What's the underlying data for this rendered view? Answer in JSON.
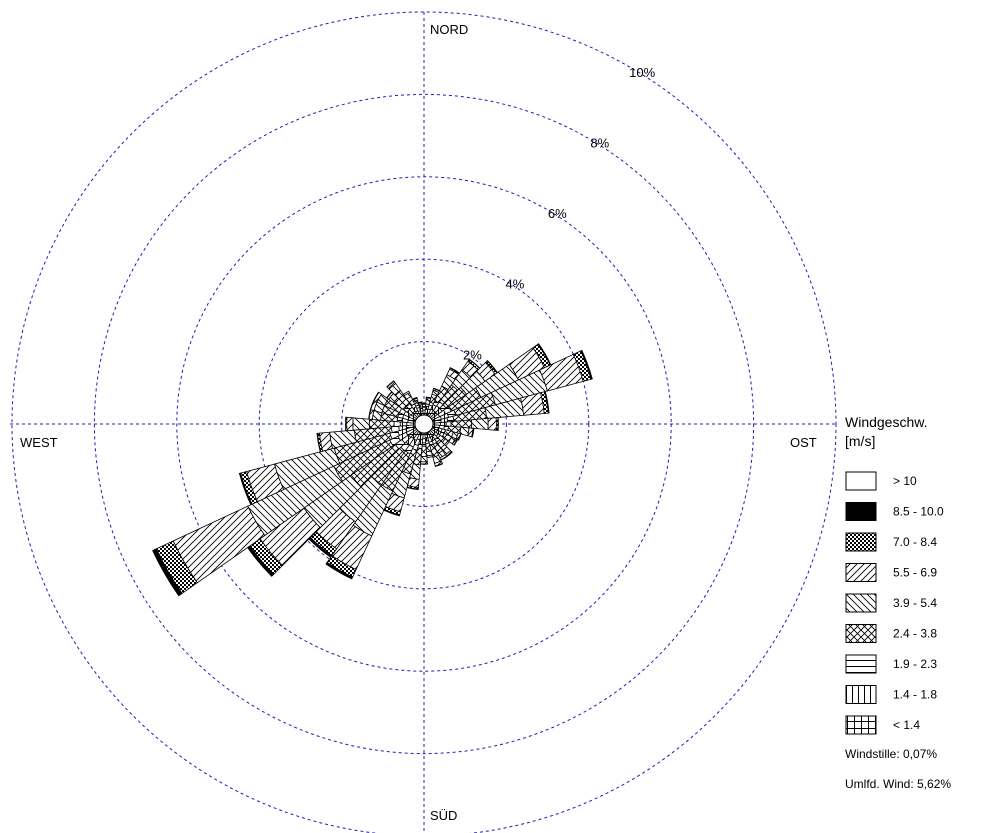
{
  "chart_data": {
    "type": "wind-rose",
    "compass_labels": {
      "north": "NORD",
      "east": "OST",
      "south": "SÜD",
      "west": "WEST"
    },
    "radial_unit": "%",
    "rings": [
      2,
      4,
      6,
      8,
      10
    ],
    "ring_labels": [
      "2%",
      "4%",
      "6%",
      "8%",
      "10%"
    ],
    "rmax": 10,
    "sector_width_deg": 10,
    "speed_classes": [
      {
        "label": "< 1.4",
        "pattern": "grid"
      },
      {
        "label": "1.4 - 1.8",
        "pattern": "vertical"
      },
      {
        "label": "1.9 - 2.3",
        "pattern": "horizontal"
      },
      {
        "label": "2.4 - 3.8",
        "pattern": "crosshatch"
      },
      {
        "label": "3.9 - 5.4",
        "pattern": "backslash"
      },
      {
        "label": "5.5 - 6.9",
        "pattern": "slash"
      },
      {
        "label": "7.0 - 8.4",
        "pattern": "checker"
      },
      {
        "label": "8.5 - 10.0",
        "pattern": "solid"
      },
      {
        "label": "> 10",
        "pattern": "empty"
      }
    ],
    "sectors": [
      {
        "dir": 0,
        "values": [
          0.12,
          0.06,
          0.03,
          0.05,
          0.02,
          0.01,
          0,
          0,
          0
        ]
      },
      {
        "dir": 10,
        "values": [
          0.14,
          0.08,
          0.05,
          0.1,
          0.05,
          0.02,
          0,
          0,
          0
        ]
      },
      {
        "dir": 20,
        "values": [
          0.16,
          0.1,
          0.07,
          0.2,
          0.1,
          0.04,
          0.01,
          0,
          0
        ]
      },
      {
        "dir": 30,
        "values": [
          0.18,
          0.12,
          0.1,
          0.4,
          0.3,
          0.15,
          0.03,
          0.01,
          0
        ]
      },
      {
        "dir": 40,
        "values": [
          0.18,
          0.14,
          0.12,
          0.5,
          0.45,
          0.25,
          0.05,
          0.01,
          0
        ]
      },
      {
        "dir": 50,
        "values": [
          0.18,
          0.14,
          0.12,
          0.6,
          0.55,
          0.3,
          0.06,
          0.01,
          0
        ]
      },
      {
        "dir": 60,
        "values": [
          0.2,
          0.16,
          0.15,
          0.8,
          1.0,
          0.7,
          0.15,
          0.02,
          0
        ]
      },
      {
        "dir": 70,
        "values": [
          0.22,
          0.18,
          0.18,
          1.0,
          1.3,
          0.9,
          0.2,
          0.03,
          0
        ]
      },
      {
        "dir": 80,
        "values": [
          0.2,
          0.16,
          0.15,
          0.8,
          0.9,
          0.5,
          0.1,
          0.02,
          0
        ]
      },
      {
        "dir": 90,
        "values": [
          0.18,
          0.14,
          0.12,
          0.5,
          0.4,
          0.2,
          0.04,
          0.01,
          0
        ]
      },
      {
        "dir": 100,
        "values": [
          0.16,
          0.12,
          0.1,
          0.3,
          0.2,
          0.1,
          0.02,
          0,
          0
        ]
      },
      {
        "dir": 110,
        "values": [
          0.14,
          0.1,
          0.08,
          0.2,
          0.12,
          0.06,
          0.01,
          0,
          0
        ]
      },
      {
        "dir": 120,
        "values": [
          0.14,
          0.1,
          0.08,
          0.2,
          0.1,
          0.05,
          0.01,
          0,
          0
        ]
      },
      {
        "dir": 130,
        "values": [
          0.12,
          0.08,
          0.06,
          0.15,
          0.08,
          0.04,
          0,
          0,
          0
        ]
      },
      {
        "dir": 140,
        "values": [
          0.14,
          0.1,
          0.08,
          0.25,
          0.12,
          0.05,
          0.01,
          0,
          0
        ]
      },
      {
        "dir": 150,
        "values": [
          0.14,
          0.1,
          0.08,
          0.25,
          0.12,
          0.05,
          0.01,
          0,
          0
        ]
      },
      {
        "dir": 160,
        "values": [
          0.14,
          0.1,
          0.08,
          0.3,
          0.15,
          0.07,
          0.01,
          0,
          0
        ]
      },
      {
        "dir": 170,
        "values": [
          0.12,
          0.08,
          0.06,
          0.2,
          0.1,
          0.04,
          0,
          0,
          0
        ]
      },
      {
        "dir": 180,
        "values": [
          0.14,
          0.1,
          0.08,
          0.25,
          0.13,
          0.05,
          0.01,
          0,
          0
        ]
      },
      {
        "dir": 190,
        "values": [
          0.16,
          0.12,
          0.1,
          0.4,
          0.35,
          0.2,
          0.04,
          0.01,
          0
        ]
      },
      {
        "dir": 200,
        "values": [
          0.18,
          0.14,
          0.12,
          0.6,
          0.6,
          0.35,
          0.08,
          0.02,
          0
        ]
      },
      {
        "dir": 210,
        "values": [
          0.22,
          0.18,
          0.18,
          1.0,
          1.2,
          0.9,
          0.2,
          0.05,
          0
        ]
      },
      {
        "dir": 220,
        "values": [
          0.22,
          0.18,
          0.18,
          1.0,
          1.1,
          0.8,
          0.2,
          0.05,
          0
        ]
      },
      {
        "dir": 230,
        "values": [
          0.24,
          0.2,
          0.2,
          1.3,
          1.4,
          1.3,
          0.3,
          0.07,
          0
        ]
      },
      {
        "dir": 240,
        "values": [
          0.26,
          0.22,
          0.22,
          1.5,
          2.3,
          2.0,
          0.45,
          0.1,
          0
        ]
      },
      {
        "dir": 250,
        "values": [
          0.24,
          0.2,
          0.2,
          1.4,
          1.5,
          0.7,
          0.15,
          0.03,
          0
        ]
      },
      {
        "dir": 260,
        "values": [
          0.22,
          0.18,
          0.18,
          0.9,
          0.6,
          0.25,
          0.05,
          0.01,
          0
        ]
      },
      {
        "dir": 270,
        "values": [
          0.2,
          0.16,
          0.15,
          0.6,
          0.4,
          0.15,
          0.03,
          0,
          0
        ]
      },
      {
        "dir": 280,
        "values": [
          0.18,
          0.14,
          0.12,
          0.4,
          0.2,
          0.08,
          0.01,
          0,
          0
        ]
      },
      {
        "dir": 290,
        "values": [
          0.18,
          0.14,
          0.12,
          0.4,
          0.2,
          0.08,
          0.01,
          0,
          0
        ]
      },
      {
        "dir": 300,
        "values": [
          0.18,
          0.14,
          0.12,
          0.4,
          0.2,
          0.08,
          0.01,
          0,
          0
        ]
      },
      {
        "dir": 310,
        "values": [
          0.16,
          0.12,
          0.1,
          0.3,
          0.15,
          0.05,
          0.01,
          0,
          0
        ]
      },
      {
        "dir": 320,
        "values": [
          0.16,
          0.12,
          0.1,
          0.4,
          0.2,
          0.07,
          0.01,
          0,
          0
        ]
      },
      {
        "dir": 330,
        "values": [
          0.14,
          0.1,
          0.08,
          0.2,
          0.1,
          0.04,
          0,
          0,
          0
        ]
      },
      {
        "dir": 340,
        "values": [
          0.12,
          0.08,
          0.06,
          0.12,
          0.05,
          0.02,
          0,
          0,
          0
        ]
      },
      {
        "dir": 350,
        "values": [
          0.1,
          0.06,
          0.04,
          0.08,
          0.03,
          0.01,
          0,
          0,
          0
        ]
      }
    ],
    "legend": {
      "title_line1": "Windgeschw.",
      "title_line2": "[m/s]",
      "placement": "right",
      "order": [
        "> 10",
        "8.5 - 10.0",
        "7.0 - 8.4",
        "5.5 - 6.9",
        "3.9 - 5.4",
        "2.4 - 3.8",
        "1.9 - 2.3",
        "1.4 - 1.8",
        "< 1.4"
      ]
    },
    "notes": {
      "calm": "Windstille: 0,07%",
      "variable": "Umlfd. Wind: 5,62%"
    },
    "ring_color": "#1f1fb4"
  }
}
